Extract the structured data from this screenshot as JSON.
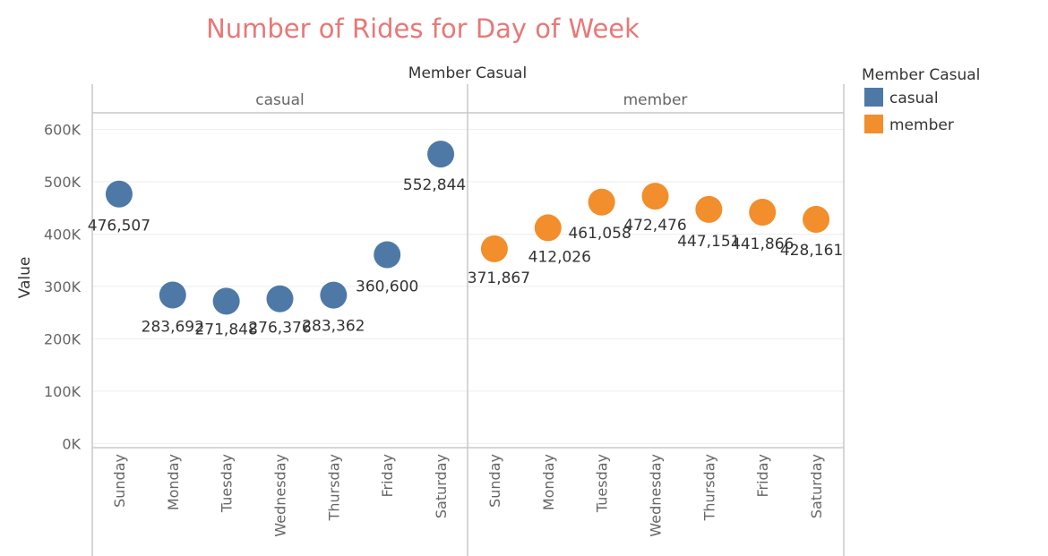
{
  "chart_data": {
    "type": "scatter",
    "title": "Number of Rides for Day of Week",
    "header": "Member Casual",
    "ylabel": "Value",
    "ylim": [
      -8000,
      630000
    ],
    "yticks": [
      {
        "value": 0,
        "label": "0K"
      },
      {
        "value": 100000,
        "label": "100K"
      },
      {
        "value": 200000,
        "label": "200K"
      },
      {
        "value": 300000,
        "label": "300K"
      },
      {
        "value": 400000,
        "label": "400K"
      },
      {
        "value": 500000,
        "label": "500K"
      },
      {
        "value": 600000,
        "label": "600K"
      }
    ],
    "categories": [
      "Sunday",
      "Monday",
      "Tuesday",
      "Wednesday",
      "Thursday",
      "Friday",
      "Saturday"
    ],
    "legend": {
      "title": "Member Casual",
      "position": "top-right",
      "items": [
        {
          "name": "casual",
          "color": "#4e79a7"
        },
        {
          "name": "member",
          "color": "#f28e2b"
        }
      ]
    },
    "series": [
      {
        "name": "casual",
        "color": "#4e79a7",
        "values": [
          476507,
          283692,
          271848,
          276376,
          283362,
          360600,
          552844
        ],
        "labels": [
          "476,507",
          "283,692",
          "271,848",
          "276,376",
          "283,362",
          "360,600",
          "552,844"
        ]
      },
      {
        "name": "member",
        "color": "#f28e2b",
        "values": [
          371867,
          412026,
          461058,
          472476,
          447151,
          441866,
          428161
        ],
        "labels": [
          "371,867",
          "412,026",
          "461,058",
          "472,476",
          "447,151",
          "441,866",
          "428,161"
        ]
      }
    ]
  },
  "colors": {
    "title": "#e87877",
    "text": "#333333",
    "axis_text": "#666666",
    "grid": "#eeeeee",
    "divider": "#c8c8c8"
  }
}
